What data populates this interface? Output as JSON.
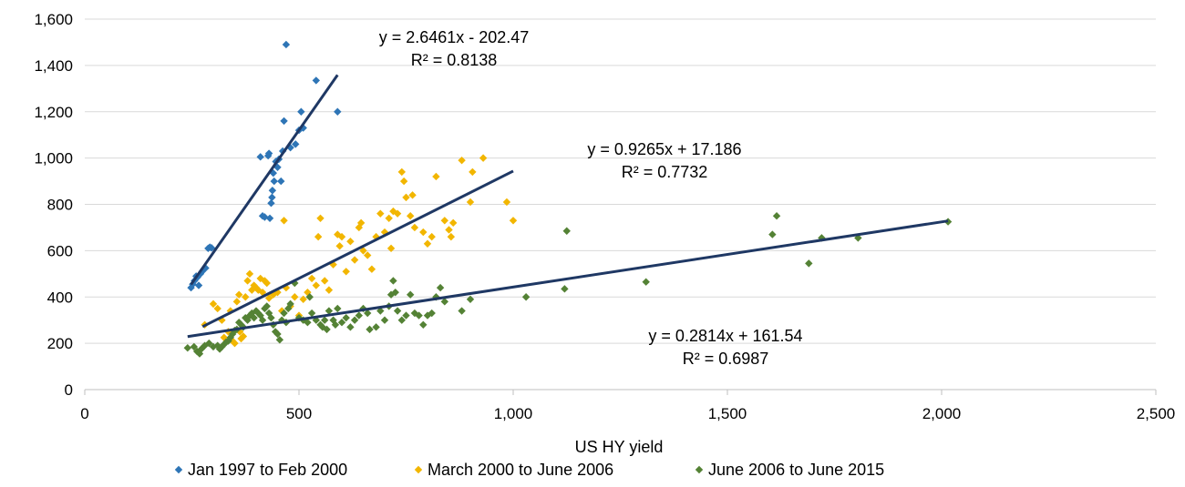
{
  "chart_data": {
    "type": "scatter",
    "xlabel": "US HY yield",
    "ylabel": "",
    "xlim": [
      0,
      2500
    ],
    "ylim": [
      0,
      1600
    ],
    "x_ticks": [
      0,
      500,
      1000,
      1500,
      2000,
      2500
    ],
    "x_tick_labels": [
      "0",
      "500",
      "1,000",
      "1,500",
      "2,000",
      "2,500"
    ],
    "y_ticks": [
      0,
      200,
      400,
      600,
      800,
      1000,
      1200,
      1400,
      1600
    ],
    "y_tick_labels": [
      "0",
      "200",
      "400",
      "600",
      "800",
      "1,000",
      "1,200",
      "1,400",
      "1,600"
    ],
    "grid": "horizontal",
    "legend_position": "bottom",
    "series": [
      {
        "name": "Jan 1997 to Feb 2000",
        "color": "#2e75b6",
        "points": [
          [
            248,
            440
          ],
          [
            252,
            455
          ],
          [
            256,
            470
          ],
          [
            260,
            490
          ],
          [
            263,
            485
          ],
          [
            266,
            450
          ],
          [
            270,
            500
          ],
          [
            274,
            510
          ],
          [
            278,
            520
          ],
          [
            282,
            525
          ],
          [
            288,
            610
          ],
          [
            292,
            615
          ],
          [
            296,
            612
          ],
          [
            410,
            1005
          ],
          [
            415,
            750
          ],
          [
            420,
            745
          ],
          [
            428,
            1010
          ],
          [
            430,
            1020
          ],
          [
            432,
            740
          ],
          [
            435,
            805
          ],
          [
            437,
            830
          ],
          [
            438,
            860
          ],
          [
            440,
            935
          ],
          [
            442,
            900
          ],
          [
            446,
            985
          ],
          [
            450,
            960
          ],
          [
            453,
            995
          ],
          [
            458,
            900
          ],
          [
            462,
            1030
          ],
          [
            465,
            1160
          ],
          [
            470,
            1490
          ],
          [
            480,
            1045
          ],
          [
            492,
            1060
          ],
          [
            500,
            1120
          ],
          [
            505,
            1200
          ],
          [
            510,
            1130
          ],
          [
            540,
            1335
          ],
          [
            590,
            1200
          ]
        ],
        "trend": {
          "slope": 2.6461,
          "intercept": -202.47,
          "x_range": [
            248,
            590
          ]
        },
        "equation": "y = 2.6461x - 202.47",
        "r2": "R² = 0.8138"
      },
      {
        "name": "March 2000 to June 2006",
        "color": "#f2b600",
        "points": [
          [
            280,
            280
          ],
          [
            300,
            370
          ],
          [
            310,
            350
          ],
          [
            320,
            300
          ],
          [
            325,
            225
          ],
          [
            335,
            250
          ],
          [
            340,
            340
          ],
          [
            345,
            210
          ],
          [
            350,
            200
          ],
          [
            355,
            380
          ],
          [
            360,
            410
          ],
          [
            362,
            250
          ],
          [
            365,
            220
          ],
          [
            370,
            230
          ],
          [
            375,
            400
          ],
          [
            380,
            470
          ],
          [
            385,
            500
          ],
          [
            390,
            430
          ],
          [
            395,
            450
          ],
          [
            400,
            440
          ],
          [
            405,
            430
          ],
          [
            410,
            480
          ],
          [
            415,
            420
          ],
          [
            420,
            470
          ],
          [
            425,
            460
          ],
          [
            430,
            395
          ],
          [
            440,
            410
          ],
          [
            450,
            420
          ],
          [
            460,
            340
          ],
          [
            465,
            730
          ],
          [
            470,
            440
          ],
          [
            480,
            360
          ],
          [
            490,
            400
          ],
          [
            500,
            320
          ],
          [
            510,
            390
          ],
          [
            520,
            420
          ],
          [
            530,
            480
          ],
          [
            540,
            450
          ],
          [
            545,
            660
          ],
          [
            550,
            740
          ],
          [
            560,
            470
          ],
          [
            570,
            430
          ],
          [
            580,
            540
          ],
          [
            590,
            670
          ],
          [
            595,
            620
          ],
          [
            600,
            660
          ],
          [
            610,
            510
          ],
          [
            620,
            640
          ],
          [
            630,
            560
          ],
          [
            640,
            700
          ],
          [
            645,
            720
          ],
          [
            650,
            600
          ],
          [
            660,
            580
          ],
          [
            670,
            520
          ],
          [
            680,
            660
          ],
          [
            690,
            760
          ],
          [
            700,
            680
          ],
          [
            710,
            740
          ],
          [
            715,
            610
          ],
          [
            720,
            770
          ],
          [
            730,
            760
          ],
          [
            740,
            940
          ],
          [
            745,
            900
          ],
          [
            750,
            830
          ],
          [
            760,
            750
          ],
          [
            765,
            840
          ],
          [
            770,
            700
          ],
          [
            790,
            680
          ],
          [
            800,
            630
          ],
          [
            810,
            660
          ],
          [
            820,
            920
          ],
          [
            840,
            730
          ],
          [
            850,
            690
          ],
          [
            855,
            660
          ],
          [
            860,
            720
          ],
          [
            880,
            990
          ],
          [
            900,
            810
          ],
          [
            905,
            940
          ],
          [
            930,
            1000
          ],
          [
            985,
            810
          ],
          [
            1000,
            730
          ]
        ],
        "trend": {
          "slope": 0.9265,
          "intercept": 17.186,
          "x_range": [
            275,
            1000
          ]
        },
        "equation": "y = 0.9265x + 17.186",
        "r2": "R² = 0.7732"
      },
      {
        "name": "June 2006 to June 2015",
        "color": "#548235",
        "points": [
          [
            240,
            180
          ],
          [
            255,
            185
          ],
          [
            262,
            165
          ],
          [
            268,
            155
          ],
          [
            272,
            175
          ],
          [
            280,
            190
          ],
          [
            290,
            200
          ],
          [
            300,
            185
          ],
          [
            310,
            190
          ],
          [
            315,
            175
          ],
          [
            320,
            185
          ],
          [
            325,
            195
          ],
          [
            330,
            205
          ],
          [
            335,
            210
          ],
          [
            340,
            225
          ],
          [
            345,
            240
          ],
          [
            350,
            255
          ],
          [
            355,
            260
          ],
          [
            360,
            290
          ],
          [
            365,
            280
          ],
          [
            370,
            270
          ],
          [
            375,
            310
          ],
          [
            380,
            300
          ],
          [
            385,
            320
          ],
          [
            390,
            330
          ],
          [
            395,
            310
          ],
          [
            400,
            340
          ],
          [
            405,
            330
          ],
          [
            410,
            320
          ],
          [
            415,
            300
          ],
          [
            420,
            350
          ],
          [
            425,
            360
          ],
          [
            430,
            330
          ],
          [
            435,
            310
          ],
          [
            440,
            280
          ],
          [
            445,
            250
          ],
          [
            450,
            240
          ],
          [
            455,
            215
          ],
          [
            460,
            300
          ],
          [
            465,
            330
          ],
          [
            470,
            290
          ],
          [
            475,
            350
          ],
          [
            480,
            370
          ],
          [
            490,
            460
          ],
          [
            500,
            310
          ],
          [
            510,
            300
          ],
          [
            520,
            290
          ],
          [
            525,
            400
          ],
          [
            530,
            330
          ],
          [
            540,
            300
          ],
          [
            550,
            280
          ],
          [
            555,
            270
          ],
          [
            560,
            300
          ],
          [
            565,
            260
          ],
          [
            570,
            340
          ],
          [
            580,
            300
          ],
          [
            585,
            280
          ],
          [
            590,
            350
          ],
          [
            600,
            290
          ],
          [
            610,
            310
          ],
          [
            620,
            270
          ],
          [
            630,
            300
          ],
          [
            640,
            320
          ],
          [
            650,
            350
          ],
          [
            660,
            330
          ],
          [
            665,
            260
          ],
          [
            680,
            270
          ],
          [
            690,
            340
          ],
          [
            700,
            300
          ],
          [
            710,
            360
          ],
          [
            715,
            410
          ],
          [
            720,
            470
          ],
          [
            725,
            420
          ],
          [
            730,
            340
          ],
          [
            740,
            300
          ],
          [
            750,
            320
          ],
          [
            760,
            410
          ],
          [
            770,
            330
          ],
          [
            780,
            320
          ],
          [
            790,
            280
          ],
          [
            800,
            320
          ],
          [
            810,
            330
          ],
          [
            820,
            400
          ],
          [
            830,
            440
          ],
          [
            840,
            380
          ],
          [
            880,
            340
          ],
          [
            900,
            390
          ],
          [
            1030,
            400
          ],
          [
            1120,
            435
          ],
          [
            1125,
            685
          ],
          [
            1310,
            465
          ],
          [
            1605,
            670
          ],
          [
            1615,
            750
          ],
          [
            1690,
            545
          ],
          [
            1720,
            655
          ],
          [
            1805,
            655
          ],
          [
            2015,
            725
          ]
        ],
        "trend": {
          "slope": 0.2814,
          "intercept": 161.54,
          "x_range": [
            240,
            2015
          ]
        },
        "equation": "y = 0.2814x + 161.54",
        "r2": "R² = 0.6987"
      }
    ]
  }
}
